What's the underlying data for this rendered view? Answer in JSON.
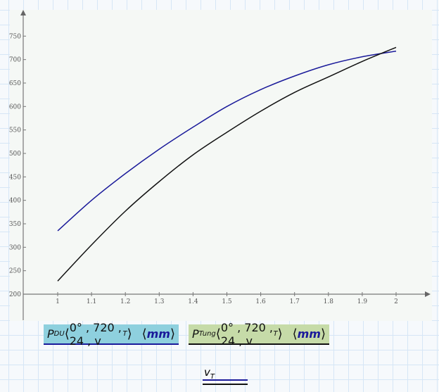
{
  "chart_data": {
    "type": "line",
    "x": [
      1,
      1.1,
      1.2,
      1.3,
      1.4,
      1.5,
      1.6,
      1.7,
      1.8,
      1.9,
      2
    ],
    "series": [
      {
        "name": "P_DU(0°,720,24,v_T) (mm)",
        "color": "#1a1a9a",
        "values": [
          335,
          400,
          457,
          509,
          556,
          600,
          636,
          665,
          689,
          706,
          718
        ]
      },
      {
        "name": "P_Tung(0°,720,24,v_T) (mm)",
        "color": "#111111",
        "values": [
          228,
          305,
          377,
          440,
          497,
          545,
          590,
          630,
          663,
          696,
          726
        ]
      }
    ],
    "xlim": [
      0.9,
      2.1
    ],
    "ylim": [
      200,
      800
    ],
    "xticks": [
      "1",
      "1.1",
      "1.2",
      "1.3",
      "1.4",
      "1.5",
      "1.6",
      "1.7",
      "1.8",
      "1.9",
      "2"
    ],
    "yticks": [
      "200",
      "250",
      "300",
      "350",
      "400",
      "450",
      "500",
      "550",
      "600",
      "650",
      "700",
      "750"
    ],
    "xlabel": {
      "base": "v",
      "sub": "T"
    },
    "grid": false
  },
  "legend": {
    "du": {
      "P": "P",
      "sub": "DU",
      "args": "0° , 720 , 24 , v",
      "argsub": "T",
      "unit": "mm"
    },
    "tung": {
      "P": "P",
      "sub": "Tung",
      "args": "0° , 720 , 24 , v",
      "argsub": "T",
      "unit": "mm"
    }
  }
}
